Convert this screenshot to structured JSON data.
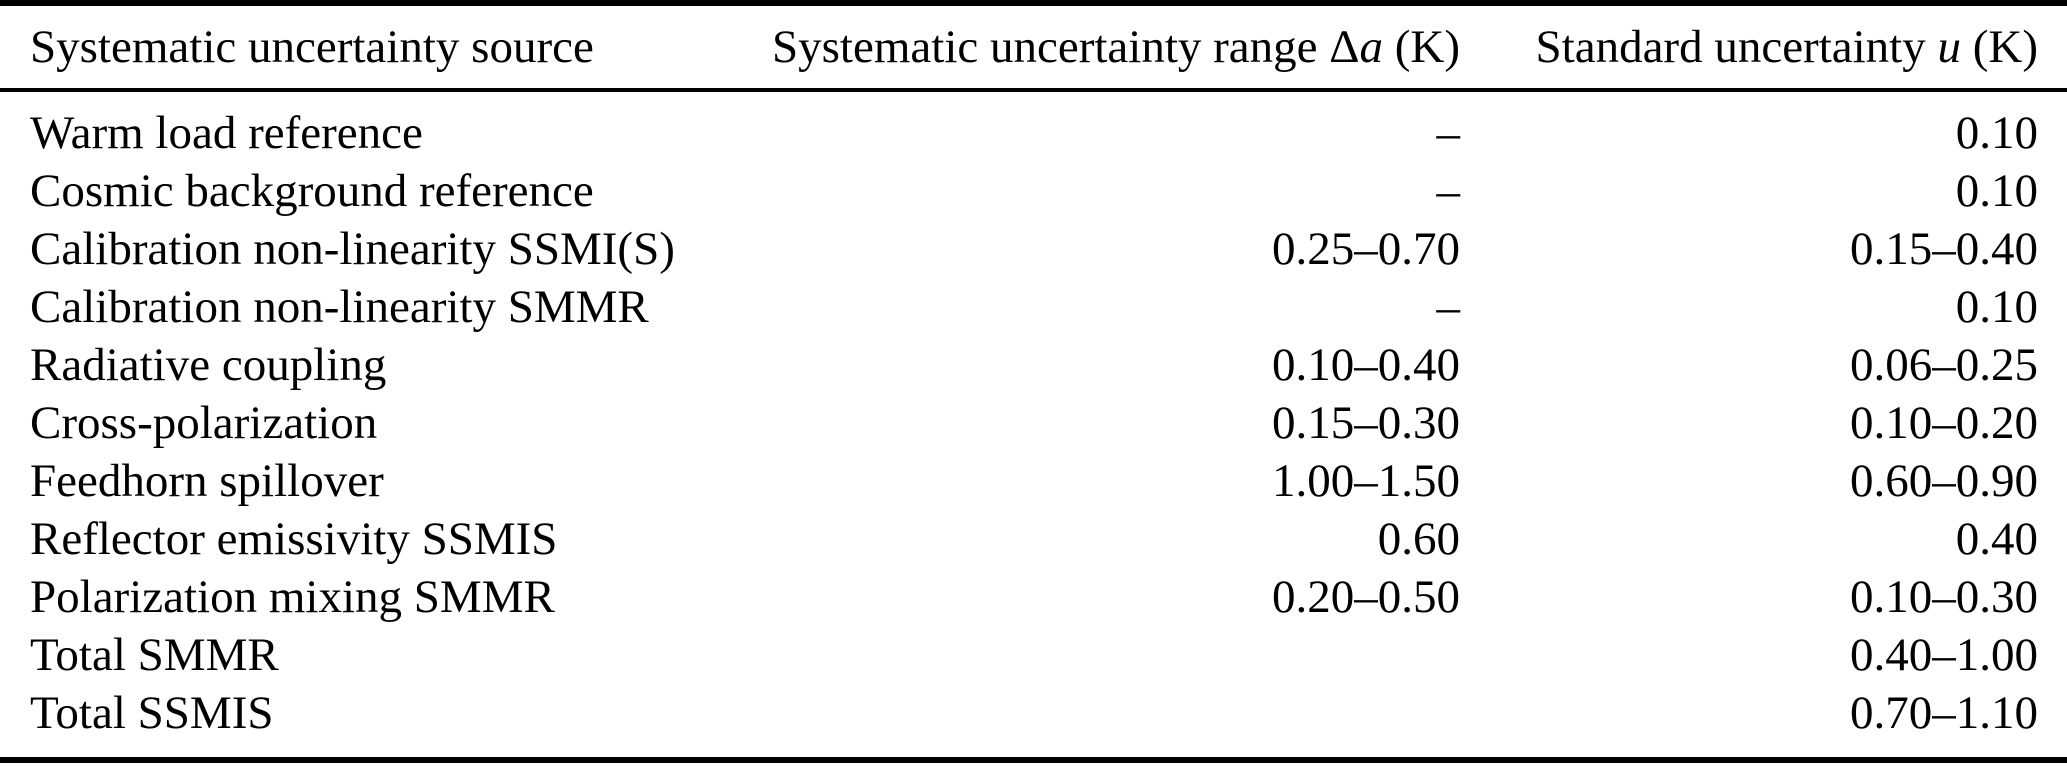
{
  "table": {
    "columns": {
      "source": {
        "label": "Systematic uncertainty source"
      },
      "range": {
        "prefix": "Systematic uncertainty range Δ",
        "var": "a",
        "suffix": " (K)"
      },
      "std": {
        "prefix": "Standard uncertainty ",
        "var": "u",
        "suffix": " (K)"
      }
    },
    "rows": [
      {
        "source": "Warm load reference",
        "range": "–",
        "std": "0.10"
      },
      {
        "source": "Cosmic background reference",
        "range": "–",
        "std": "0.10"
      },
      {
        "source": "Calibration non-linearity SSMI(S)",
        "range": "0.25–0.70",
        "std": "0.15–0.40"
      },
      {
        "source": "Calibration non-linearity SMMR",
        "range": "–",
        "std": "0.10"
      },
      {
        "source": "Radiative coupling",
        "range": "0.10–0.40",
        "std": "0.06–0.25"
      },
      {
        "source": "Cross-polarization",
        "range": "0.15–0.30",
        "std": "0.10–0.20"
      },
      {
        "source": "Feedhorn spillover",
        "range": "1.00–1.50",
        "std": "0.60–0.90"
      },
      {
        "source": "Reflector emissivity SSMIS",
        "range": "0.60",
        "std": "0.40"
      },
      {
        "source": "Polarization mixing SMMR",
        "range": "0.20–0.50",
        "std": "0.10–0.30"
      },
      {
        "source": "Total SMMR",
        "range": "",
        "std": "0.40–1.00"
      },
      {
        "source": "Total SSMIS",
        "range": "",
        "std": "0.70–1.10"
      }
    ]
  },
  "colors": {
    "background": "#ffffff",
    "text": "#000000",
    "rule": "#000000"
  }
}
